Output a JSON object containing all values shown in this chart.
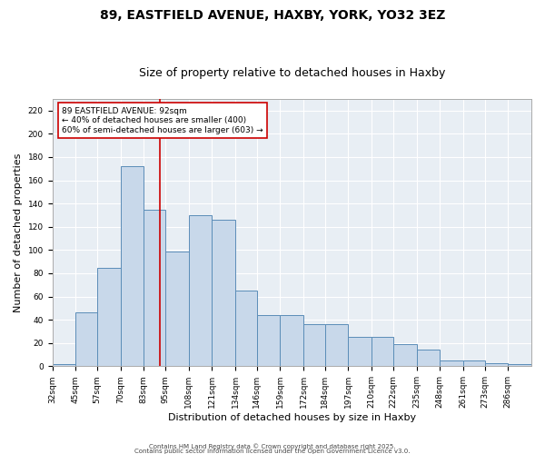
{
  "title1": "89, EASTFIELD AVENUE, HAXBY, YORK, YO32 3EZ",
  "title2": "Size of property relative to detached houses in Haxby",
  "xlabel": "Distribution of detached houses by size in Haxby",
  "ylabel": "Number of detached properties",
  "categories": [
    "32sqm",
    "45sqm",
    "57sqm",
    "70sqm",
    "83sqm",
    "95sqm",
    "108sqm",
    "121sqm",
    "134sqm",
    "146sqm",
    "159sqm",
    "172sqm",
    "184sqm",
    "197sqm",
    "210sqm",
    "222sqm",
    "235sqm",
    "248sqm",
    "261sqm",
    "273sqm",
    "286sqm"
  ],
  "bin_edges": [
    32,
    45,
    57,
    70,
    83,
    95,
    108,
    121,
    134,
    146,
    159,
    172,
    184,
    197,
    210,
    222,
    235,
    248,
    261,
    273,
    286,
    299
  ],
  "bar_heights": [
    2,
    46,
    85,
    172,
    135,
    99,
    130,
    126,
    65,
    44,
    44,
    36,
    36,
    25,
    25,
    19,
    14,
    5,
    5,
    3,
    2
  ],
  "red_line_x": 92,
  "bar_color": "#c8d8ea",
  "bar_edge_color": "#5b8db8",
  "plot_bg_color": "#e8eef4",
  "red_line_color": "#cc0000",
  "annotation_text": "89 EASTFIELD AVENUE: 92sqm\n← 40% of detached houses are smaller (400)\n60% of semi-detached houses are larger (603) →",
  "annotation_box_color": "white",
  "annotation_box_edge": "#cc0000",
  "grid_color": "#ffffff",
  "background_color": "white",
  "ylim": [
    0,
    230
  ],
  "yticks": [
    0,
    20,
    40,
    60,
    80,
    100,
    120,
    140,
    160,
    180,
    200,
    220
  ],
  "footnote1": "Contains HM Land Registry data © Crown copyright and database right 2025.",
  "footnote2": "Contains public sector information licensed under the Open Government Licence v3.0.",
  "title1_fontsize": 10,
  "title2_fontsize": 9,
  "tick_fontsize": 6.5,
  "label_fontsize": 8,
  "annot_fontsize": 6.5
}
